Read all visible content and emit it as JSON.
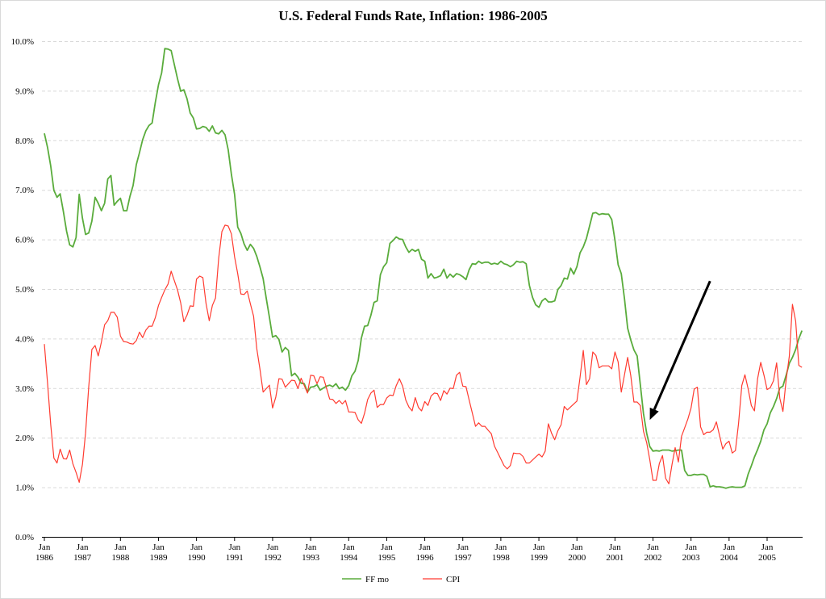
{
  "chart_data": {
    "type": "line",
    "title": "U.S. Federal Funds Rate, Inflation: 1986-2005",
    "xlabel": "",
    "ylabel": "",
    "x_range": [
      "1986-01",
      "2005-12"
    ],
    "x_frequency": "monthly",
    "x_tick_labels": [
      [
        "Jan",
        "1986"
      ],
      [
        "Jan",
        "1987"
      ],
      [
        "Jan",
        "1988"
      ],
      [
        "Jan",
        "1989"
      ],
      [
        "Jan",
        "1990"
      ],
      [
        "Jan",
        "1991"
      ],
      [
        "Jan",
        "1992"
      ],
      [
        "Jan",
        "1993"
      ],
      [
        "Jan",
        "1994"
      ],
      [
        "Jan",
        "1995"
      ],
      [
        "Jan",
        "1996"
      ],
      [
        "Jan",
        "1997"
      ],
      [
        "Jan",
        "1998"
      ],
      [
        "Jan",
        "1999"
      ],
      [
        "Jan",
        "2000"
      ],
      [
        "Jan",
        "2001"
      ],
      [
        "Jan",
        "2002"
      ],
      [
        "Jan",
        "2003"
      ],
      [
        "Jan",
        "2004"
      ],
      [
        "Jan",
        "2005"
      ]
    ],
    "ylim": [
      0,
      10
    ],
    "y_tick_labels": [
      "0.0%",
      "1.0%",
      "2.0%",
      "3.0%",
      "4.0%",
      "5.0%",
      "6.0%",
      "7.0%",
      "8.0%",
      "9.0%",
      "10.0%"
    ],
    "y_ticks": [
      0,
      1,
      2,
      3,
      4,
      5,
      6,
      7,
      8,
      9,
      10
    ],
    "grid": "horizontal dashed",
    "legend_placement": "bottom",
    "series": [
      {
        "name": "FF mo",
        "color": "#5aac3c",
        "values": [
          8.14,
          7.86,
          7.48,
          6.99,
          6.85,
          6.92,
          6.56,
          6.17,
          5.89,
          5.85,
          6.04,
          6.91,
          6.43,
          6.1,
          6.13,
          6.37,
          6.85,
          6.73,
          6.58,
          6.73,
          7.22,
          7.29,
          6.69,
          6.77,
          6.83,
          6.58,
          6.58,
          6.87,
          7.09,
          7.51,
          7.75,
          8.01,
          8.19,
          8.3,
          8.35,
          8.76,
          9.12,
          9.36,
          9.85,
          9.84,
          9.81,
          9.53,
          9.24,
          8.99,
          9.02,
          8.84,
          8.55,
          8.45,
          8.23,
          8.24,
          8.28,
          8.26,
          8.18,
          8.29,
          8.15,
          8.13,
          8.2,
          8.11,
          7.81,
          7.31,
          6.91,
          6.25,
          6.12,
          5.91,
          5.78,
          5.9,
          5.82,
          5.66,
          5.45,
          5.21,
          4.81,
          4.43,
          4.03,
          4.06,
          3.98,
          3.73,
          3.82,
          3.76,
          3.25,
          3.3,
          3.22,
          3.1,
          3.09,
          2.92,
          3.02,
          3.03,
          3.07,
          2.96,
          3.0,
          3.04,
          3.06,
          3.03,
          3.09,
          2.99,
          3.02,
          2.96,
          3.05,
          3.25,
          3.34,
          3.56,
          4.01,
          4.25,
          4.26,
          4.47,
          4.73,
          4.76,
          5.29,
          5.45,
          5.53,
          5.92,
          5.98,
          6.05,
          6.01,
          6.0,
          5.85,
          5.74,
          5.8,
          5.76,
          5.8,
          5.6,
          5.56,
          5.22,
          5.31,
          5.22,
          5.24,
          5.27,
          5.4,
          5.22,
          5.3,
          5.24,
          5.31,
          5.29,
          5.25,
          5.19,
          5.39,
          5.51,
          5.5,
          5.56,
          5.52,
          5.54,
          5.54,
          5.5,
          5.52,
          5.5,
          5.56,
          5.51,
          5.49,
          5.45,
          5.49,
          5.56,
          5.54,
          5.55,
          5.51,
          5.07,
          4.83,
          4.68,
          4.63,
          4.76,
          4.81,
          4.74,
          4.74,
          4.76,
          4.99,
          5.07,
          5.22,
          5.2,
          5.42,
          5.3,
          5.45,
          5.73,
          5.85,
          6.02,
          6.27,
          6.53,
          6.54,
          6.5,
          6.52,
          6.51,
          6.51,
          6.4,
          5.98,
          5.49,
          5.31,
          4.8,
          4.21,
          3.97,
          3.77,
          3.65,
          3.07,
          2.49,
          2.09,
          1.82,
          1.73,
          1.74,
          1.73,
          1.75,
          1.75,
          1.75,
          1.73,
          1.74,
          1.75,
          1.75,
          1.34,
          1.24,
          1.24,
          1.26,
          1.25,
          1.26,
          1.26,
          1.22,
          1.01,
          1.03,
          1.01,
          1.01,
          1.0,
          0.98,
          1.0,
          1.01,
          1.0,
          1.0,
          1.0,
          1.03,
          1.26,
          1.43,
          1.61,
          1.76,
          1.93,
          2.16,
          2.28,
          2.5,
          2.63,
          2.79,
          3.0,
          3.04,
          3.26,
          3.5,
          3.62,
          3.78,
          4.0,
          4.16
        ]
      },
      {
        "name": "CPI",
        "color": "#ff3b30",
        "values": [
          3.89,
          3.11,
          2.26,
          1.59,
          1.49,
          1.77,
          1.58,
          1.57,
          1.75,
          1.47,
          1.3,
          1.1,
          1.46,
          2.1,
          3.03,
          3.78,
          3.86,
          3.65,
          3.93,
          4.28,
          4.36,
          4.53,
          4.53,
          4.43,
          4.05,
          3.94,
          3.93,
          3.9,
          3.89,
          3.96,
          4.13,
          4.02,
          4.17,
          4.25,
          4.25,
          4.42,
          4.67,
          4.83,
          4.98,
          5.1,
          5.36,
          5.17,
          4.98,
          4.72,
          4.34,
          4.47,
          4.66,
          4.65,
          5.2,
          5.26,
          5.23,
          4.71,
          4.36,
          4.67,
          4.82,
          5.62,
          6.16,
          6.29,
          6.27,
          6.11,
          5.65,
          5.31,
          4.9,
          4.89,
          4.96,
          4.7,
          4.45,
          3.8,
          3.39,
          2.92,
          2.99,
          3.06,
          2.6,
          2.82,
          3.19,
          3.18,
          3.02,
          3.09,
          3.16,
          3.15,
          2.99,
          3.2,
          3.05,
          2.9,
          3.26,
          3.25,
          3.09,
          3.23,
          3.22,
          3.0,
          2.78,
          2.77,
          2.69,
          2.75,
          2.68,
          2.75,
          2.52,
          2.52,
          2.51,
          2.36,
          2.29,
          2.49,
          2.77,
          2.9,
          2.96,
          2.61,
          2.67,
          2.67,
          2.8,
          2.86,
          2.85,
          3.05,
          3.19,
          3.04,
          2.76,
          2.62,
          2.54,
          2.81,
          2.61,
          2.54,
          2.73,
          2.65,
          2.84,
          2.9,
          2.89,
          2.75,
          2.95,
          2.88,
          3.0,
          2.99,
          3.26,
          3.32,
          3.04,
          3.03,
          2.76,
          2.5,
          2.23,
          2.3,
          2.23,
          2.23,
          2.15,
          2.08,
          1.83,
          1.7,
          1.57,
          1.44,
          1.37,
          1.44,
          1.69,
          1.68,
          1.68,
          1.62,
          1.49,
          1.49,
          1.55,
          1.61,
          1.67,
          1.61,
          1.73,
          2.28,
          2.09,
          1.96,
          2.14,
          2.26,
          2.63,
          2.56,
          2.62,
          2.68,
          2.74,
          3.22,
          3.76,
          3.07,
          3.19,
          3.73,
          3.66,
          3.41,
          3.45,
          3.45,
          3.45,
          3.39,
          3.73,
          3.53,
          2.92,
          3.27,
          3.62,
          3.25,
          2.72,
          2.72,
          2.65,
          2.13,
          1.9,
          1.55,
          1.14,
          1.14,
          1.48,
          1.64,
          1.18,
          1.07,
          1.46,
          1.8,
          1.51,
          2.03,
          2.2,
          2.38,
          2.6,
          2.98,
          3.02,
          2.22,
          2.06,
          2.11,
          2.11,
          2.16,
          2.32,
          2.04,
          1.77,
          1.88,
          1.93,
          1.69,
          1.74,
          2.29,
          3.05,
          3.27,
          2.99,
          2.65,
          2.54,
          3.19,
          3.52,
          3.26,
          2.97,
          3.01,
          3.15,
          3.51,
          2.8,
          2.53,
          3.17,
          3.64,
          4.69,
          4.35,
          3.46,
          3.42
        ]
      }
    ],
    "annotations": [
      {
        "type": "arrow",
        "color": "#000000",
        "from": {
          "x": "2003-07",
          "y": 5.16
        },
        "to": {
          "x": "2001-12",
          "y": 2.36
        }
      }
    ]
  }
}
